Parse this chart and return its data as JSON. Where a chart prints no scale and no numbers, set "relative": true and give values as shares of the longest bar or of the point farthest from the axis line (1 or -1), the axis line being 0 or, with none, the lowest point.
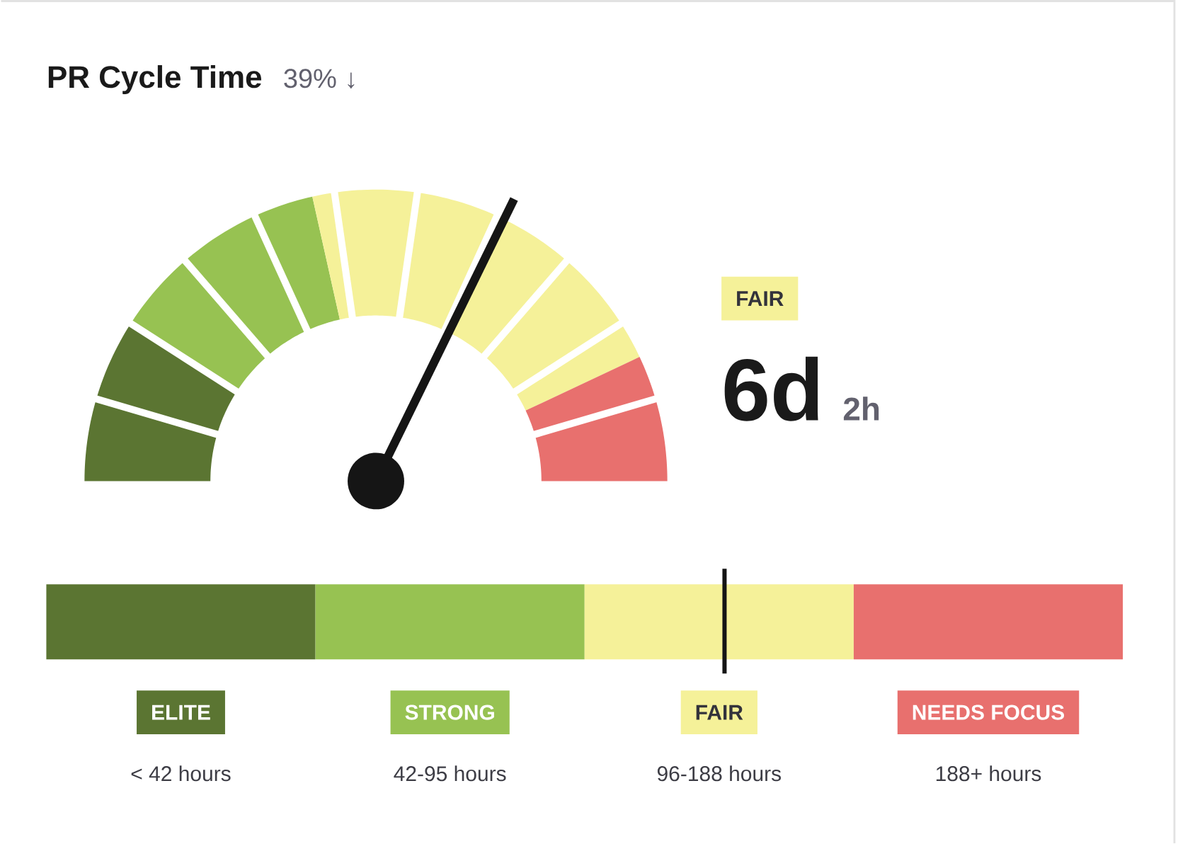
{
  "chart_data": [
    {
      "type": "donut",
      "title": "PR Cycle Time",
      "subtitle": "39% ↓",
      "categories": [
        null,
        null,
        "FAIR",
        null
      ],
      "values": [
        18,
        25,
        43,
        14
      ],
      "colors": [
        "#5b7532",
        "#97c252",
        "#f5f199",
        "#e8706e"
      ],
      "needle": "FAIR",
      "annotations": [
        "6d",
        "2h"
      ]
    },
    {
      "type": "bar",
      "orientation": "horizontal",
      "stacked": true,
      "relative": true,
      "categories": [
        null
      ],
      "series": [
        {
          "name": "ELITE",
          "color": "#5b7532",
          "values": [
            0.25
          ]
        },
        {
          "name": "STRONG",
          "color": "#97c252",
          "values": [
            0.25
          ]
        },
        {
          "name": "FAIR",
          "color": "#f5f199",
          "values": [
            0.25
          ]
        },
        {
          "name": "NEEDS FOCUS",
          "color": "#e8706e",
          "values": [
            0.25
          ]
        }
      ],
      "ref_lines": [
        {
          "axis": "x",
          "value": 0.63,
          "color": "#151515"
        }
      ],
      "annotations": [
        "< 42 hours",
        "42-95 hours",
        "96-188 hours",
        "188+ hours"
      ]
    }
  ]
}
